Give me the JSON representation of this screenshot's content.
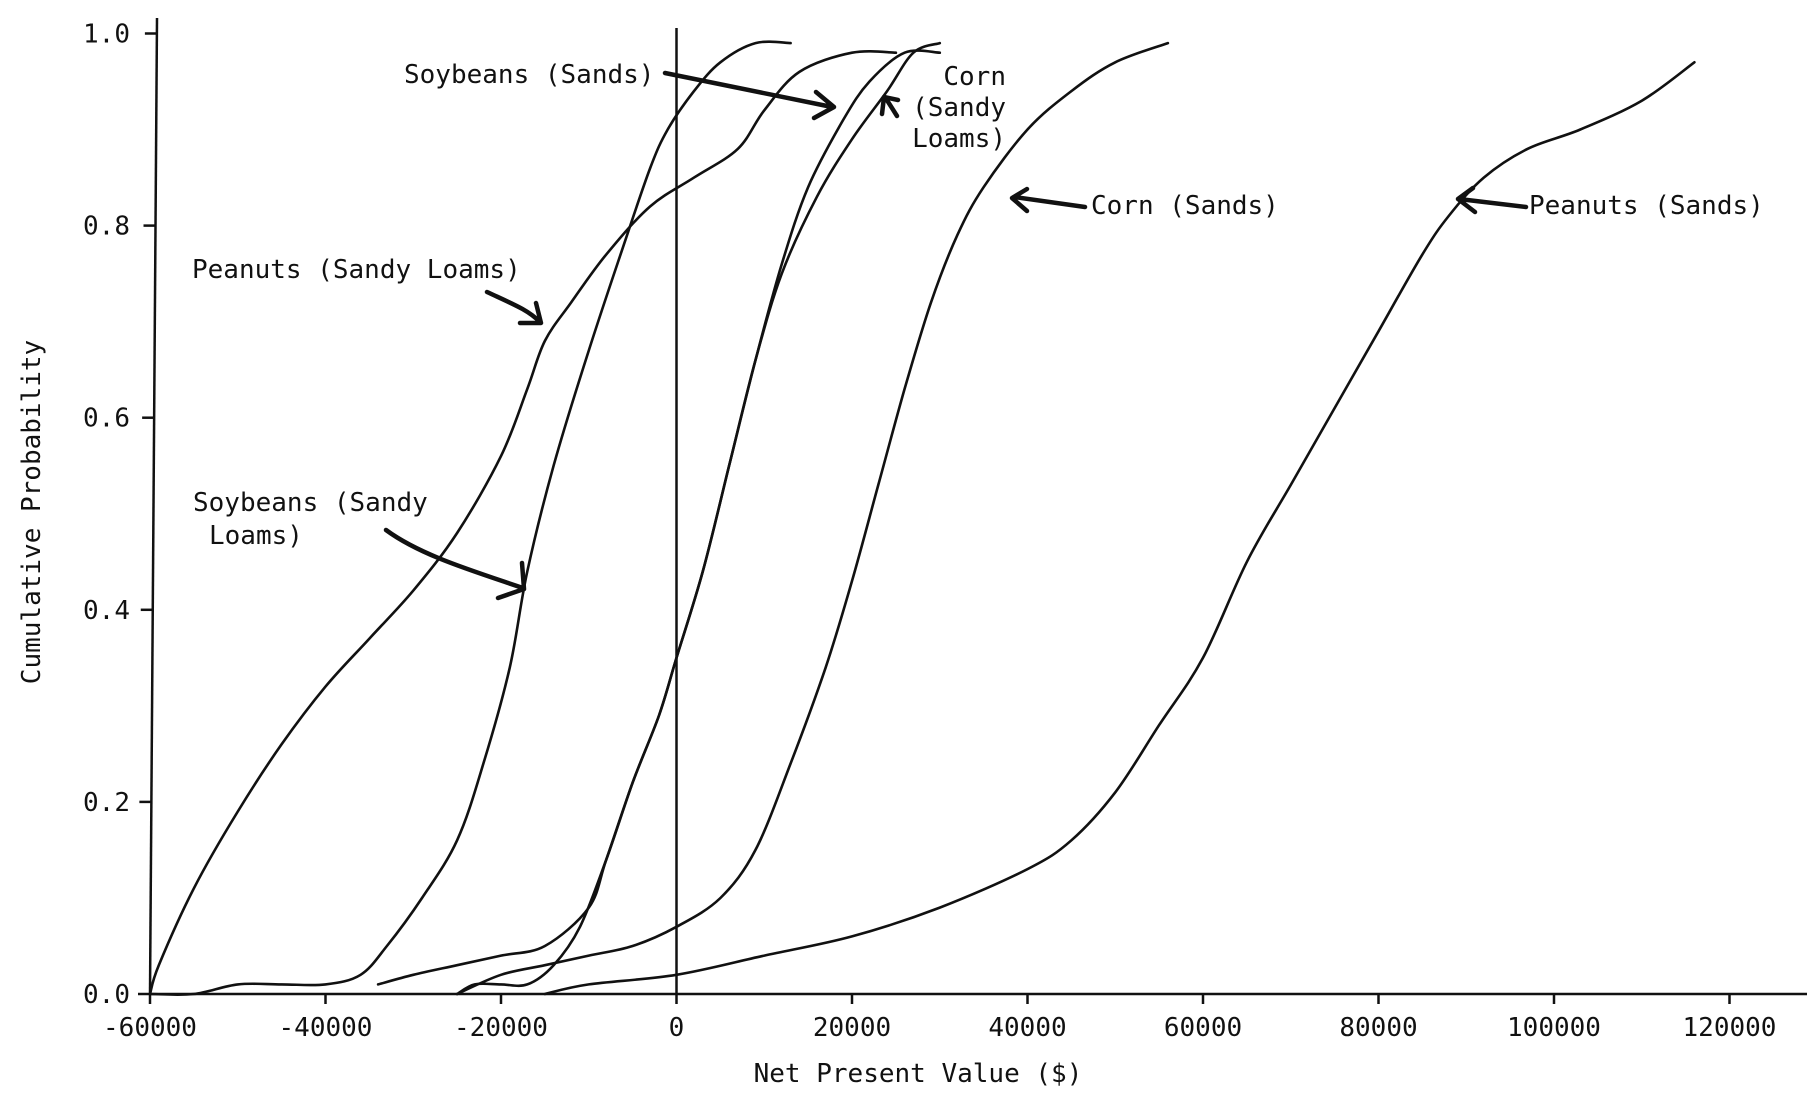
{
  "chart_data": {
    "type": "line",
    "title": "",
    "xlabel": "Net Present Value ($)",
    "ylabel": "Cumulative Probability",
    "xlim": [
      -60000,
      130000
    ],
    "ylim": [
      0,
      1.0
    ],
    "x_ticks": [
      -60000,
      -40000,
      -20000,
      0,
      20000,
      40000,
      60000,
      80000,
      100000,
      120000
    ],
    "x_tick_labels": [
      "-60000",
      "-40000",
      "-20000",
      "0",
      "20000",
      "40000",
      "60000",
      "80000",
      "100000",
      "120000"
    ],
    "y_ticks": [
      0,
      0.2,
      0.4,
      0.6,
      0.8,
      1.0
    ],
    "y_tick_labels": [
      "0.0",
      "0.2",
      "0.4",
      "0.6",
      "0.8",
      "1.0"
    ],
    "grid": false,
    "legend": "none (curves labeled directly with arrows)",
    "series": [
      {
        "name": "Peanuts (Sandy Loams)",
        "points": [
          [
            -60000,
            0.0
          ],
          [
            -59000,
            0.03
          ],
          [
            -55000,
            0.11
          ],
          [
            -50000,
            0.19
          ],
          [
            -45000,
            0.26
          ],
          [
            -40000,
            0.32
          ],
          [
            -35000,
            0.37
          ],
          [
            -30000,
            0.42
          ],
          [
            -25000,
            0.48
          ],
          [
            -20000,
            0.56
          ],
          [
            -17000,
            0.63
          ],
          [
            -15000,
            0.68
          ],
          [
            -12000,
            0.72
          ],
          [
            -8000,
            0.77
          ],
          [
            -3000,
            0.82
          ],
          [
            2000,
            0.85
          ],
          [
            7000,
            0.88
          ],
          [
            10000,
            0.92
          ],
          [
            14000,
            0.96
          ],
          [
            20000,
            0.98
          ],
          [
            25000,
            0.98
          ]
        ]
      },
      {
        "name": "Soybeans (Sandy Loams)",
        "points": [
          [
            -60000,
            0.0
          ],
          [
            -55000,
            0.0
          ],
          [
            -50000,
            0.01
          ],
          [
            -45000,
            0.01
          ],
          [
            -40000,
            0.01
          ],
          [
            -36000,
            0.02
          ],
          [
            -33000,
            0.05
          ],
          [
            -29000,
            0.1
          ],
          [
            -25000,
            0.16
          ],
          [
            -22000,
            0.24
          ],
          [
            -19000,
            0.34
          ],
          [
            -17000,
            0.44
          ],
          [
            -14000,
            0.55
          ],
          [
            -10000,
            0.67
          ],
          [
            -6000,
            0.78
          ],
          [
            -3000,
            0.86
          ],
          [
            -1000,
            0.9
          ],
          [
            2000,
            0.94
          ],
          [
            5000,
            0.97
          ],
          [
            9000,
            0.99
          ],
          [
            13000,
            0.99
          ]
        ]
      },
      {
        "name": "Soybeans (Sands)",
        "points": [
          [
            -34000,
            0.01
          ],
          [
            -30000,
            0.02
          ],
          [
            -25000,
            0.03
          ],
          [
            -20000,
            0.04
          ],
          [
            -15000,
            0.05
          ],
          [
            -10000,
            0.09
          ],
          [
            -8000,
            0.14
          ],
          [
            -5000,
            0.22
          ],
          [
            -2000,
            0.29
          ],
          [
            0,
            0.35
          ],
          [
            3000,
            0.44
          ],
          [
            6000,
            0.55
          ],
          [
            9000,
            0.66
          ],
          [
            12000,
            0.76
          ],
          [
            15000,
            0.84
          ],
          [
            19000,
            0.91
          ],
          [
            22000,
            0.95
          ],
          [
            26000,
            0.98
          ],
          [
            30000,
            0.98
          ]
        ]
      },
      {
        "name": "Corn (Sandy Loams)",
        "points": [
          [
            -25000,
            0.0
          ],
          [
            -23000,
            0.01
          ],
          [
            -20000,
            0.01
          ],
          [
            -17000,
            0.01
          ],
          [
            -14000,
            0.03
          ],
          [
            -11000,
            0.07
          ],
          [
            -8000,
            0.14
          ],
          [
            -5000,
            0.22
          ],
          [
            -2000,
            0.29
          ],
          [
            0,
            0.35
          ],
          [
            3000,
            0.44
          ],
          [
            6000,
            0.55
          ],
          [
            9000,
            0.66
          ],
          [
            12000,
            0.75
          ],
          [
            16000,
            0.83
          ],
          [
            20000,
            0.89
          ],
          [
            24000,
            0.94
          ],
          [
            27000,
            0.98
          ],
          [
            30000,
            0.99
          ]
        ]
      },
      {
        "name": "Corn (Sands)",
        "points": [
          [
            -25000,
            0.0
          ],
          [
            -20000,
            0.02
          ],
          [
            -15000,
            0.03
          ],
          [
            -10000,
            0.04
          ],
          [
            -5000,
            0.05
          ],
          [
            0,
            0.07
          ],
          [
            5000,
            0.1
          ],
          [
            9000,
            0.15
          ],
          [
            13000,
            0.24
          ],
          [
            17000,
            0.34
          ],
          [
            20000,
            0.43
          ],
          [
            23000,
            0.53
          ],
          [
            26000,
            0.63
          ],
          [
            29000,
            0.72
          ],
          [
            32000,
            0.79
          ],
          [
            35000,
            0.84
          ],
          [
            40000,
            0.9
          ],
          [
            45000,
            0.94
          ],
          [
            50000,
            0.97
          ],
          [
            56000,
            0.99
          ]
        ]
      },
      {
        "name": "Peanuts (Sands)",
        "points": [
          [
            -15000,
            0.0
          ],
          [
            -10000,
            0.01
          ],
          [
            0,
            0.02
          ],
          [
            10000,
            0.04
          ],
          [
            20000,
            0.06
          ],
          [
            30000,
            0.09
          ],
          [
            40000,
            0.13
          ],
          [
            45000,
            0.16
          ],
          [
            50000,
            0.21
          ],
          [
            55000,
            0.28
          ],
          [
            60000,
            0.35
          ],
          [
            65000,
            0.45
          ],
          [
            70000,
            0.53
          ],
          [
            75000,
            0.61
          ],
          [
            80000,
            0.69
          ],
          [
            85000,
            0.77
          ],
          [
            88000,
            0.81
          ],
          [
            92000,
            0.85
          ],
          [
            97000,
            0.88
          ],
          [
            103000,
            0.9
          ],
          [
            110000,
            0.93
          ],
          [
            116000,
            0.97
          ]
        ]
      }
    ],
    "annotations": [
      {
        "text": "Soybeans (Sands)",
        "lines": [
          "Soybeans (Sands)"
        ]
      },
      {
        "text": "Corn (Sandy Loams)",
        "lines": [
          "Corn",
          "(Sandy",
          "Loams)"
        ]
      },
      {
        "text": "Corn (Sands)",
        "lines": [
          "Corn (Sands)"
        ]
      },
      {
        "text": "Peanuts (Sands)",
        "lines": [
          "Peanuts (Sands)"
        ]
      },
      {
        "text": "Peanuts (Sandy Loams)",
        "lines": [
          "Peanuts (Sandy Loams)"
        ]
      },
      {
        "text": "Soybeans (Sandy Loams)",
        "lines": [
          "Soybeans (Sandy",
          "Loams)"
        ]
      }
    ]
  }
}
